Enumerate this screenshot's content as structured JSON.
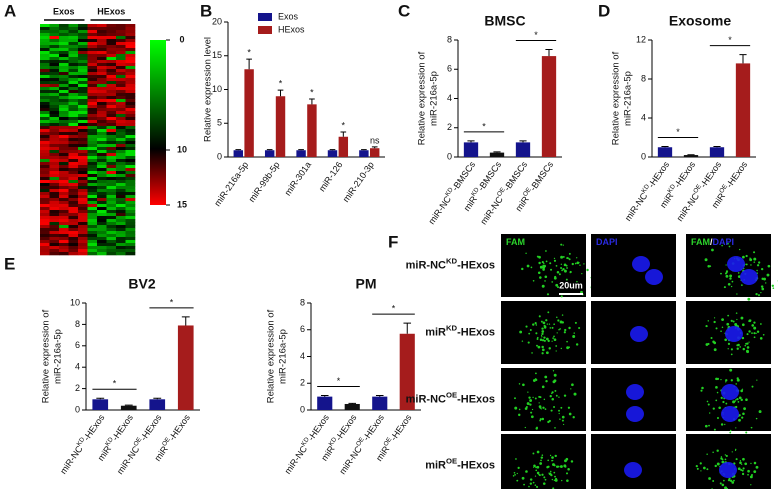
{
  "chart_data": [
    {
      "type": "heatmap",
      "label": "A",
      "columns": [
        "Exos",
        "HExos"
      ],
      "colorbar_lim": [
        0,
        15
      ],
      "colorbar_ticks": [
        0,
        10,
        15
      ]
    },
    {
      "type": "bar",
      "label": "B",
      "ylabel": "Relative expression level",
      "categories": [
        "miR-216a-5p",
        "miR-99b-5p",
        "miR-301a",
        "miR-126",
        "miR-210-3p"
      ],
      "series": [
        {
          "name": "Exos",
          "color": "#14148c",
          "values": [
            1,
            1,
            1,
            1,
            1
          ],
          "errors": [
            0.1,
            0.1,
            0.1,
            0.1,
            0.1
          ]
        },
        {
          "name": "HExos",
          "color": "#a51c1c",
          "values": [
            13,
            9,
            7.8,
            3,
            1.3
          ],
          "errors": [
            1.5,
            0.9,
            0.8,
            0.7,
            0.2
          ]
        }
      ],
      "annotations": [
        "*",
        "*",
        "*",
        "*",
        "ns"
      ],
      "ylim": [
        0,
        20
      ],
      "yticks": [
        0,
        5,
        10,
        15,
        20
      ],
      "legend": "top-left"
    },
    {
      "type": "bar",
      "label": "C",
      "title": "BMSC",
      "ylabel": [
        "Relative expression of",
        "miR-216a-5p"
      ],
      "categories": [
        [
          "miR-NC",
          "KD",
          "-BMSCs"
        ],
        [
          "miR",
          "KD",
          "-BMSCs"
        ],
        [
          "miR-NC",
          "OE",
          "-BMSCs"
        ],
        [
          "miR",
          "OE",
          "-BMSCs"
        ]
      ],
      "values": [
        1,
        0.3,
        1,
        6.9
      ],
      "errors": [
        0.1,
        0.05,
        0.1,
        0.45
      ],
      "colors": [
        "#14148c",
        "#111111",
        "#14148c",
        "#a51c1c"
      ],
      "brackets": [
        "*",
        "*"
      ],
      "ylim": [
        0,
        8
      ],
      "yticks": [
        0,
        2,
        4,
        6,
        8
      ]
    },
    {
      "type": "bar",
      "label": "D",
      "title": "Exosome",
      "ylabel": [
        "Relative expression of",
        "miR-216a-5p"
      ],
      "categories": [
        [
          "miR-NC",
          "KD",
          "-HExos"
        ],
        [
          "miR",
          "KD",
          "-HExos"
        ],
        [
          "miR-NC",
          "OE",
          "-HExos"
        ],
        [
          "miR",
          "OE",
          "-HExos"
        ]
      ],
      "values": [
        1,
        0.2,
        1,
        9.6
      ],
      "errors": [
        0.08,
        0.03,
        0.08,
        0.9
      ],
      "colors": [
        "#14148c",
        "#111111",
        "#14148c",
        "#a51c1c"
      ],
      "brackets": [
        "*",
        "*"
      ],
      "ylim": [
        0,
        12
      ],
      "yticks": [
        0,
        4,
        8,
        12
      ]
    },
    {
      "type": "bar",
      "label": "E",
      "title": "BV2",
      "ylabel": [
        "Relative expression of",
        "miR-216a-5p"
      ],
      "categories": [
        [
          "miR-NC",
          "KD",
          "-HExos"
        ],
        [
          "miR",
          "KD",
          "-HExos"
        ],
        [
          "miR-NC",
          "OE",
          "-HExos"
        ],
        [
          "miR",
          "OE",
          "-HExos"
        ]
      ],
      "values": [
        1,
        0.4,
        1,
        7.9
      ],
      "errors": [
        0.1,
        0.05,
        0.1,
        0.8
      ],
      "colors": [
        "#14148c",
        "#111111",
        "#14148c",
        "#a51c1c"
      ],
      "brackets": [
        "*",
        "*"
      ],
      "ylim": [
        0,
        10
      ],
      "yticks": [
        0,
        2,
        4,
        6,
        8,
        10
      ]
    },
    {
      "type": "bar",
      "title": "PM",
      "ylabel": [
        "Relative expression of",
        "miR-216a-5p"
      ],
      "categories": [
        [
          "miR-NC",
          "KD",
          "-HExos"
        ],
        [
          "miR",
          "KD",
          "-HExos"
        ],
        [
          "miR-NC",
          "OE",
          "-HExos"
        ],
        [
          "miR",
          "OE",
          "-HExos"
        ]
      ],
      "values": [
        1,
        0.45,
        1,
        5.7
      ],
      "errors": [
        0.08,
        0.05,
        0.08,
        0.8
      ],
      "colors": [
        "#14148c",
        "#111111",
        "#14148c",
        "#a51c1c"
      ],
      "brackets": [
        "*",
        "*"
      ],
      "ylim": [
        0,
        8
      ],
      "yticks": [
        0,
        2,
        4,
        6,
        8
      ]
    }
  ],
  "figure_f": {
    "label": "F",
    "columns": [
      [
        {
          "text": "FAM",
          "color": "#2bd52b"
        }
      ],
      [
        {
          "text": "DAPI",
          "color": "#2a2ae0"
        }
      ],
      [
        {
          "text": "FAM",
          "color": "#2bd52b"
        },
        {
          "text": "/",
          "color": "#ffffff"
        },
        {
          "text": "DAPI",
          "color": "#2a2ae0"
        }
      ]
    ],
    "rows": [
      [
        "miR-NC",
        "KD",
        "-HExos"
      ],
      [
        "miR",
        "KD",
        "-HExos"
      ],
      [
        "miR-NC",
        "OE",
        "-HExos"
      ],
      [
        "miR",
        "OE",
        "-HExos"
      ]
    ],
    "scale_bar": "20um"
  }
}
